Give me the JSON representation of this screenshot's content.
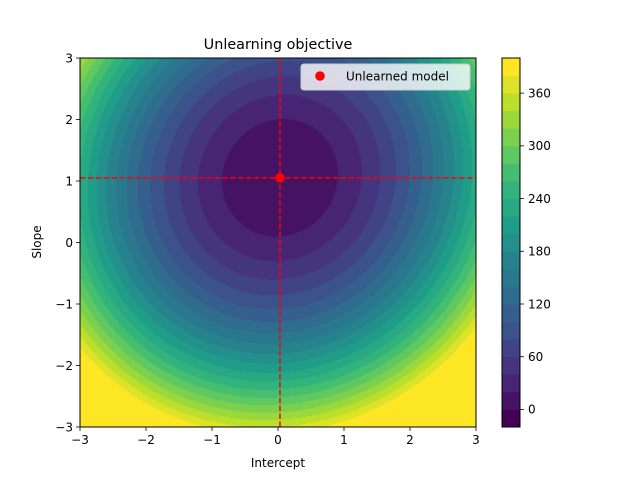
{
  "chart_data": {
    "type": "heatmap",
    "title": "Unlearning objective",
    "xlabel": "Intercept",
    "ylabel": "Slope",
    "xlim": [
      -3,
      3
    ],
    "ylim": [
      -3,
      3
    ],
    "x_ticks": [
      -3,
      -2,
      -1,
      0,
      1,
      2,
      3
    ],
    "y_ticks": [
      -3,
      -2,
      -1,
      0,
      1,
      2,
      3
    ],
    "x_tick_labels": [
      "−3",
      "−2",
      "−1",
      "0",
      "1",
      "2",
      "3"
    ],
    "y_tick_labels": [
      "−3",
      "−2",
      "−1",
      "0",
      "1",
      "2",
      "3"
    ],
    "grid": false,
    "colormap": "viridis",
    "colorbar": {
      "min": -20,
      "max": 400,
      "level_step": 20,
      "ticks": [
        0,
        60,
        120,
        180,
        240,
        300,
        360
      ],
      "tick_labels": [
        "0",
        "60",
        "120",
        "180",
        "240",
        "300",
        "360"
      ]
    },
    "surface": {
      "minimum": [
        0.03,
        1.05
      ],
      "min_value": 0,
      "x_coefficient": 26,
      "y_coefficient": 22,
      "cross_coefficient": -3
    },
    "marker": {
      "label": "Unlearned model",
      "x": 0.03,
      "y": 1.05,
      "color": "#ff0000"
    },
    "reference_lines": {
      "vertical_x": 0.03,
      "horizontal_y": 1.05,
      "color": "#ff0000",
      "style": "dashed"
    },
    "legend_position": "upper right"
  }
}
